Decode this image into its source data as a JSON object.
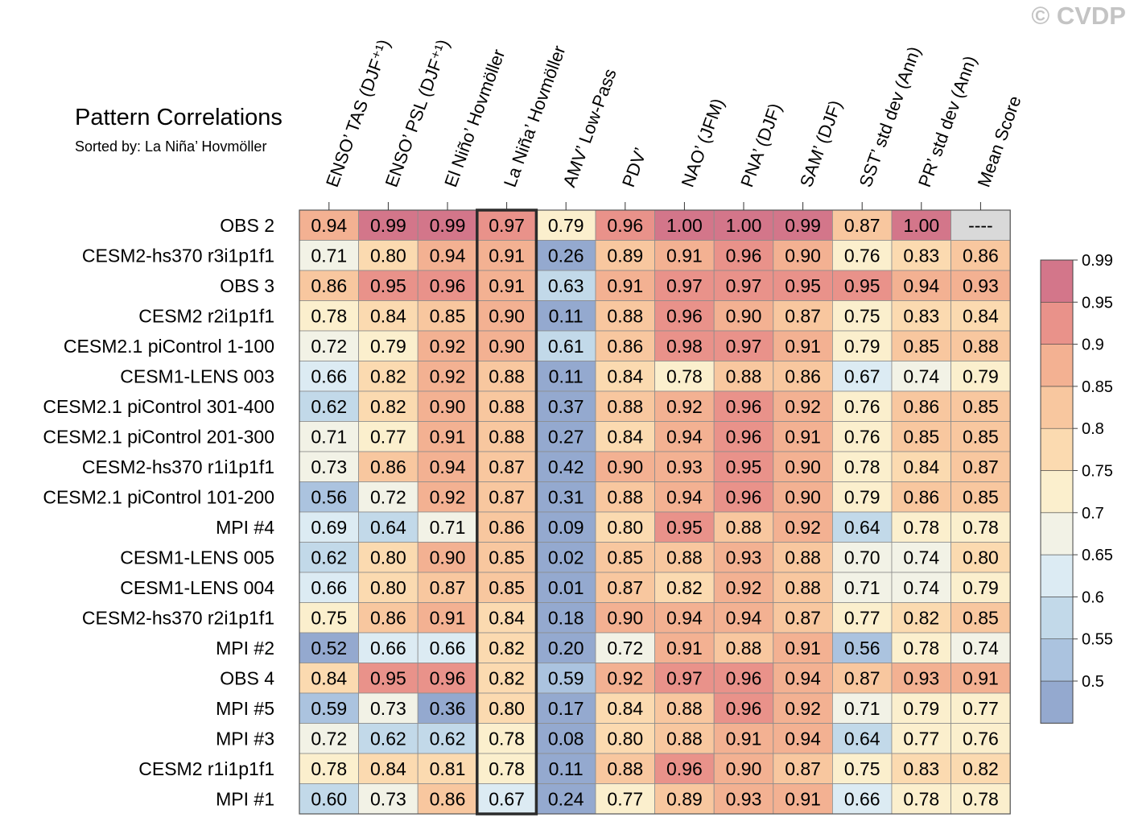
{
  "watermark": "© CVDP",
  "chart_data": {
    "type": "heatmap",
    "title": "Pattern Correlations",
    "subtitle": "Sorted by: La Niña’ Hovmöller",
    "columns": [
      "ENSO’ TAS (DJF⁺¹)",
      "ENSO’ PSL (DJF⁺¹)",
      "El Niño’ Hovmöller",
      "La Niña’ Hovmöller",
      "AMV’ Low-Pass",
      "PDV’",
      "NAO’ (JFM)",
      "PNA’ (DJF)",
      "SAM’ (DJF)",
      "SST’ std dev (Ann)",
      "PR’ std dev (Ann)",
      "Mean Score"
    ],
    "highlighted_column": "La Niña’ Hovmöller",
    "rows": [
      {
        "name": "OBS 2",
        "values": [
          "0.94",
          "0.99",
          "0.99",
          "0.97",
          "0.79",
          "0.96",
          "1.00",
          "1.00",
          "0.99",
          "0.87",
          "1.00",
          "----"
        ]
      },
      {
        "name": "CESM2-hs370 r3i1p1f1",
        "values": [
          "0.71",
          "0.80",
          "0.94",
          "0.91",
          "0.26",
          "0.89",
          "0.91",
          "0.96",
          "0.90",
          "0.76",
          "0.83",
          "0.86"
        ]
      },
      {
        "name": "OBS 3",
        "values": [
          "0.86",
          "0.95",
          "0.96",
          "0.91",
          "0.63",
          "0.91",
          "0.97",
          "0.97",
          "0.95",
          "0.95",
          "0.94",
          "0.93"
        ]
      },
      {
        "name": "CESM2 r2i1p1f1",
        "values": [
          "0.78",
          "0.84",
          "0.85",
          "0.90",
          "0.11",
          "0.88",
          "0.96",
          "0.90",
          "0.87",
          "0.75",
          "0.83",
          "0.84"
        ]
      },
      {
        "name": "CESM2.1 piControl 1-100",
        "values": [
          "0.72",
          "0.79",
          "0.92",
          "0.90",
          "0.61",
          "0.86",
          "0.98",
          "0.97",
          "0.91",
          "0.79",
          "0.85",
          "0.88"
        ]
      },
      {
        "name": "CESM1-LENS 003",
        "values": [
          "0.66",
          "0.82",
          "0.92",
          "0.88",
          "0.11",
          "0.84",
          "0.78",
          "0.88",
          "0.86",
          "0.67",
          "0.74",
          "0.79"
        ]
      },
      {
        "name": "CESM2.1 piControl 301-400",
        "values": [
          "0.62",
          "0.82",
          "0.90",
          "0.88",
          "0.37",
          "0.88",
          "0.92",
          "0.96",
          "0.92",
          "0.76",
          "0.86",
          "0.85"
        ]
      },
      {
        "name": "CESM2.1 piControl 201-300",
        "values": [
          "0.71",
          "0.77",
          "0.91",
          "0.88",
          "0.27",
          "0.84",
          "0.94",
          "0.96",
          "0.91",
          "0.76",
          "0.85",
          "0.85"
        ]
      },
      {
        "name": "CESM2-hs370 r1i1p1f1",
        "values": [
          "0.73",
          "0.86",
          "0.94",
          "0.87",
          "0.42",
          "0.90",
          "0.93",
          "0.95",
          "0.90",
          "0.78",
          "0.84",
          "0.87"
        ]
      },
      {
        "name": "CESM2.1 piControl 101-200",
        "values": [
          "0.56",
          "0.72",
          "0.92",
          "0.87",
          "0.31",
          "0.88",
          "0.94",
          "0.96",
          "0.90",
          "0.79",
          "0.86",
          "0.85"
        ]
      },
      {
        "name": "MPI #4",
        "values": [
          "0.69",
          "0.64",
          "0.71",
          "0.86",
          "0.09",
          "0.80",
          "0.95",
          "0.88",
          "0.92",
          "0.64",
          "0.78",
          "0.78"
        ]
      },
      {
        "name": "CESM1-LENS 005",
        "values": [
          "0.62",
          "0.80",
          "0.90",
          "0.85",
          "0.02",
          "0.85",
          "0.88",
          "0.93",
          "0.88",
          "0.70",
          "0.74",
          "0.80"
        ]
      },
      {
        "name": "CESM1-LENS 004",
        "values": [
          "0.66",
          "0.80",
          "0.87",
          "0.85",
          "0.01",
          "0.87",
          "0.82",
          "0.92",
          "0.88",
          "0.71",
          "0.74",
          "0.79"
        ]
      },
      {
        "name": "CESM2-hs370 r2i1p1f1",
        "values": [
          "0.75",
          "0.86",
          "0.91",
          "0.84",
          "0.18",
          "0.90",
          "0.94",
          "0.94",
          "0.87",
          "0.77",
          "0.82",
          "0.85"
        ]
      },
      {
        "name": "MPI #2",
        "values": [
          "0.52",
          "0.66",
          "0.66",
          "0.82",
          "0.20",
          "0.72",
          "0.91",
          "0.88",
          "0.91",
          "0.56",
          "0.78",
          "0.74"
        ]
      },
      {
        "name": "OBS 4",
        "values": [
          "0.84",
          "0.95",
          "0.96",
          "0.82",
          "0.59",
          "0.92",
          "0.97",
          "0.96",
          "0.94",
          "0.87",
          "0.93",
          "0.91"
        ]
      },
      {
        "name": "MPI #5",
        "values": [
          "0.59",
          "0.73",
          "0.36",
          "0.80",
          "0.17",
          "0.84",
          "0.88",
          "0.96",
          "0.92",
          "0.71",
          "0.79",
          "0.77"
        ]
      },
      {
        "name": "MPI #3",
        "values": [
          "0.72",
          "0.62",
          "0.62",
          "0.78",
          "0.08",
          "0.80",
          "0.88",
          "0.91",
          "0.94",
          "0.64",
          "0.77",
          "0.76"
        ]
      },
      {
        "name": "CESM2 r1i1p1f1",
        "values": [
          "0.78",
          "0.84",
          "0.81",
          "0.78",
          "0.11",
          "0.88",
          "0.96",
          "0.90",
          "0.87",
          "0.75",
          "0.83",
          "0.82"
        ]
      },
      {
        "name": "MPI #1",
        "values": [
          "0.60",
          "0.73",
          "0.86",
          "0.67",
          "0.24",
          "0.77",
          "0.89",
          "0.93",
          "0.91",
          "0.66",
          "0.78",
          "0.78"
        ]
      }
    ],
    "colorbar": {
      "ticks": [
        "0.5",
        "0.55",
        "0.6",
        "0.65",
        "0.7",
        "0.75",
        "0.8",
        "0.85",
        "0.9",
        "0.95",
        "0.99"
      ],
      "thresholds": [
        0.5,
        0.55,
        0.6,
        0.65,
        0.7,
        0.75,
        0.8,
        0.85,
        0.9,
        0.95,
        0.99
      ],
      "colors": [
        "#94a9cf",
        "#abc3df",
        "#c2d9e9",
        "#dcebf3",
        "#f2f2e6",
        "#fbefcd",
        "#fbdab0",
        "#f8c79f",
        "#f3b192",
        "#e9928a",
        "#d3768a"
      ],
      "missing_color": "#d9d9d9"
    }
  }
}
